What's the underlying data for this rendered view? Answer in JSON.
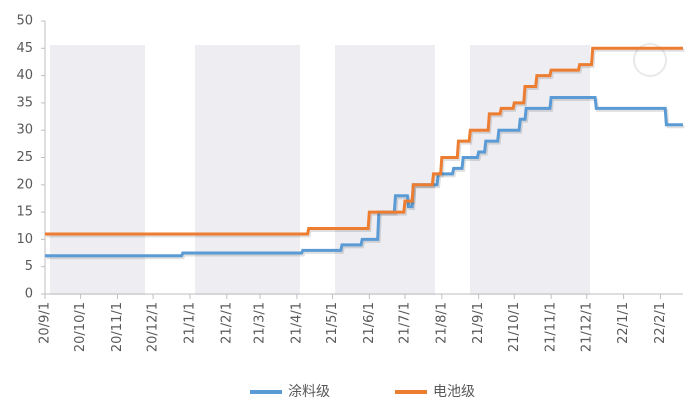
{
  "chart_data": {
    "type": "line",
    "series": [
      {
        "name": "涂料级",
        "color": "#5b9bd5",
        "x": [
          "20/9/1",
          "20/12/25",
          "20/12/26",
          "21/4/5",
          "21/4/6",
          "21/5/8",
          "21/5/9",
          "21/5/25",
          "21/5/26",
          "21/6/8",
          "21/6/9",
          "21/6/22",
          "21/6/23",
          "21/7/3",
          "21/7/4",
          "21/7/7",
          "21/7/8",
          "21/7/28",
          "21/7/29",
          "21/8/10",
          "21/8/11",
          "21/8/18",
          "21/8/19",
          "21/8/31",
          "21/9/1",
          "21/9/6",
          "21/9/7",
          "21/9/17",
          "21/9/18",
          "21/10/5",
          "21/10/6",
          "21/10/10",
          "21/10/11",
          "21/10/31",
          "21/11/1",
          "21/12/8",
          "21/12/9",
          "22/2/5",
          "22/2/6",
          "22/2/20"
        ],
        "values": [
          7,
          7,
          7.5,
          7.5,
          8,
          8,
          9,
          9,
          10,
          10,
          15,
          15,
          18,
          18,
          16,
          16,
          20,
          20,
          22,
          22,
          23,
          23,
          25,
          25,
          26,
          26,
          28,
          28,
          30,
          30,
          32,
          32,
          34,
          34,
          36,
          36,
          34,
          34,
          31,
          31
        ]
      },
      {
        "name": "电池级",
        "color": "#ed7d31",
        "x": [
          "20/9/1",
          "21/4/10",
          "21/4/11",
          "21/5/31",
          "21/6/1",
          "21/6/30",
          "21/7/1",
          "21/7/7",
          "21/7/8",
          "21/7/24",
          "21/7/25",
          "21/7/31",
          "21/8/1",
          "21/8/14",
          "21/8/15",
          "21/8/24",
          "21/8/25",
          "21/9/9",
          "21/9/10",
          "21/9/19",
          "21/9/20",
          "21/9/30",
          "21/10/1",
          "21/10/9",
          "21/10/10",
          "21/10/19",
          "21/10/20",
          "21/10/31",
          "21/11/1",
          "21/11/24",
          "21/11/25",
          "21/12/5",
          "21/12/6",
          "22/2/20"
        ],
        "values": [
          11,
          11,
          12,
          12,
          15,
          15,
          17,
          17,
          20,
          20,
          22,
          22,
          25,
          25,
          28,
          28,
          30,
          30,
          33,
          33,
          34,
          34,
          35,
          35,
          38,
          38,
          40,
          40,
          41,
          41,
          42,
          42,
          45,
          45
        ]
      }
    ],
    "xlim": [
      "20/9/1",
      "22/2/20"
    ],
    "xticks": [
      "20/9/1",
      "20/10/1",
      "20/11/1",
      "20/12/1",
      "21/1/1",
      "21/2/1",
      "21/3/1",
      "21/4/1",
      "21/5/1",
      "21/6/1",
      "21/7/1",
      "21/8/1",
      "21/9/1",
      "21/10/1",
      "21/11/1",
      "21/12/1",
      "22/1/1",
      "22/2/1"
    ],
    "ylim": [
      0,
      50
    ],
    "yticks": [
      0,
      5,
      10,
      15,
      20,
      25,
      30,
      35,
      40,
      45,
      50
    ],
    "legend": "bottom"
  }
}
